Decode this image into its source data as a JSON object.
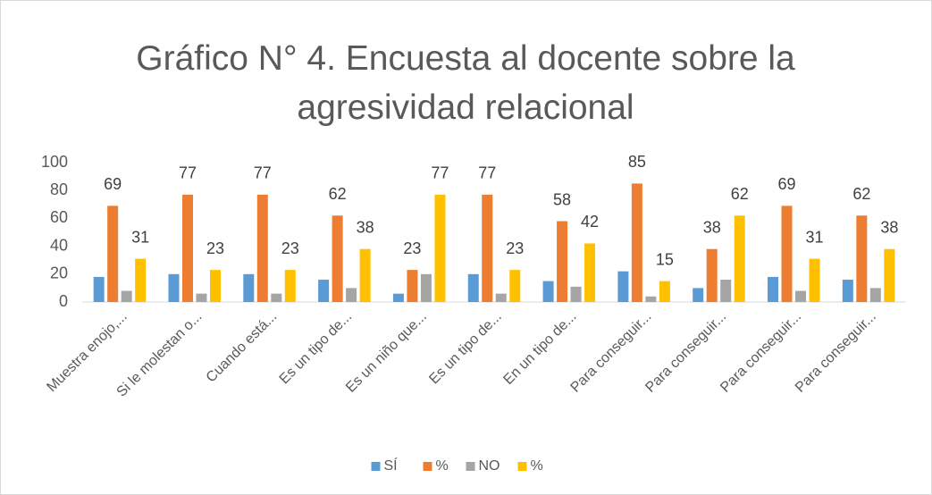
{
  "chart_data": {
    "type": "bar",
    "title": "Gráfico N° 4. Encuesta al docente sobre la agresividad relacional",
    "categories": [
      "Muestra enojo,...",
      "Si le molestan o...",
      "Cuando está...",
      "Es un tipo de...",
      "Es un niño que...",
      "Es un tipo de...",
      "En un tipo de...",
      "Para conseguir...",
      "Para conseguir...",
      "Para conseguir...",
      "Para conseguir..."
    ],
    "series": [
      {
        "name": "SÍ",
        "color": "#5b9bd5",
        "values": [
          18,
          20,
          20,
          16,
          6,
          20,
          15,
          22,
          10,
          18,
          16
        ]
      },
      {
        "name": "%",
        "color": "#ed7d31",
        "values": [
          69,
          77,
          77,
          62,
          23,
          77,
          58,
          85,
          38,
          69,
          62
        ],
        "labels": true
      },
      {
        "name": "NO",
        "color": "#a5a5a5",
        "values": [
          8,
          6,
          6,
          10,
          20,
          6,
          11,
          4,
          16,
          8,
          10
        ]
      },
      {
        "name": "%",
        "color": "#ffc000",
        "values": [
          31,
          23,
          23,
          38,
          77,
          23,
          42,
          15,
          62,
          31,
          38
        ],
        "labels": true
      }
    ],
    "ylim": [
      0,
      100
    ],
    "yticks": [
      0,
      20,
      40,
      60,
      80,
      100
    ],
    "grid": false,
    "legend": "bottom"
  }
}
